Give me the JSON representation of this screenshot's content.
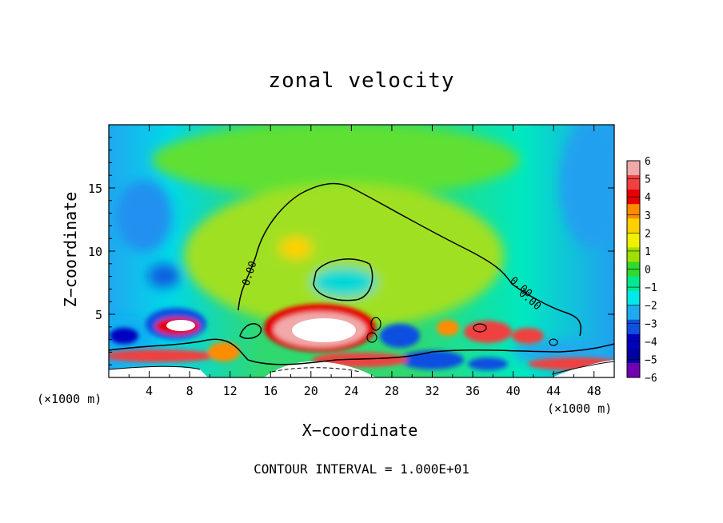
{
  "chart_data": {
    "type": "heatmap",
    "title": "zonal velocity",
    "xlabel": "X−coordinate",
    "ylabel": "Z−coordinate",
    "x_unit_label": "(×1000 m)",
    "x_ticks": [
      "4",
      "8",
      "12",
      "16",
      "20",
      "24",
      "28",
      "32",
      "36",
      "40",
      "44",
      "48"
    ],
    "x_tick_values": [
      4,
      8,
      12,
      16,
      20,
      24,
      28,
      32,
      36,
      40,
      44,
      48
    ],
    "y_ticks": [
      "5",
      "10",
      "15"
    ],
    "y_tick_values": [
      5,
      10,
      15
    ],
    "xlim": [
      0,
      50
    ],
    "ylim": [
      0,
      20
    ],
    "colorbar_labels": [
      "6",
      "5",
      "4",
      "3",
      "2",
      "1",
      "0",
      "−1",
      "−2",
      "−3",
      "−4",
      "−5",
      "−6"
    ],
    "colorbar_values": [
      6,
      5,
      4,
      3,
      2,
      1,
      0,
      -1,
      -2,
      -3,
      -4,
      -5,
      -6
    ],
    "colorbar_colors": [
      "#f0a8a8",
      "#f04040",
      "#e80000",
      "#ff8c00",
      "#ffd000",
      "#f0f000",
      "#a0e000",
      "#30d830",
      "#00e890",
      "#00e8e8",
      "#20a8f0",
      "#1050e0",
      "#0000c0",
      "#0000a0",
      "#7000b0"
    ],
    "contour_labels": [
      "0.00",
      "0.00",
      "0.00"
    ],
    "footer": "CONTOUR INTERVAL = 1.000E+01"
  }
}
